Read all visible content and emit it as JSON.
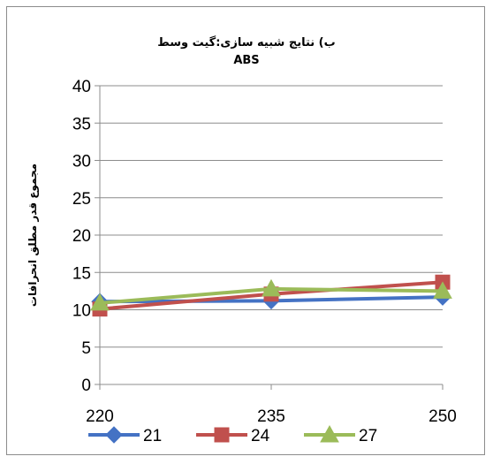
{
  "chart_data": {
    "type": "line",
    "title": "ب) نتایج شبیه سازی:گیت وسط",
    "subtitle": "ABS",
    "xlabel": "",
    "ylabel": "مجموع قدر مطلق انحرافات",
    "categories": [
      "220",
      "235",
      "250"
    ],
    "ylim": [
      0,
      40
    ],
    "yticks": [
      0,
      5,
      10,
      15,
      20,
      25,
      30,
      35,
      40
    ],
    "grid": true,
    "legend_position": "bottom",
    "series": [
      {
        "name": "21",
        "values": [
          11.1,
          11.2,
          11.7
        ],
        "color": "#4472C4",
        "marker": "diamond"
      },
      {
        "name": "24",
        "values": [
          10.1,
          12.1,
          13.7
        ],
        "color": "#C0504D",
        "marker": "square"
      },
      {
        "name": "27",
        "values": [
          10.9,
          12.8,
          12.5
        ],
        "color": "#9BBB59",
        "marker": "triangle"
      }
    ]
  }
}
